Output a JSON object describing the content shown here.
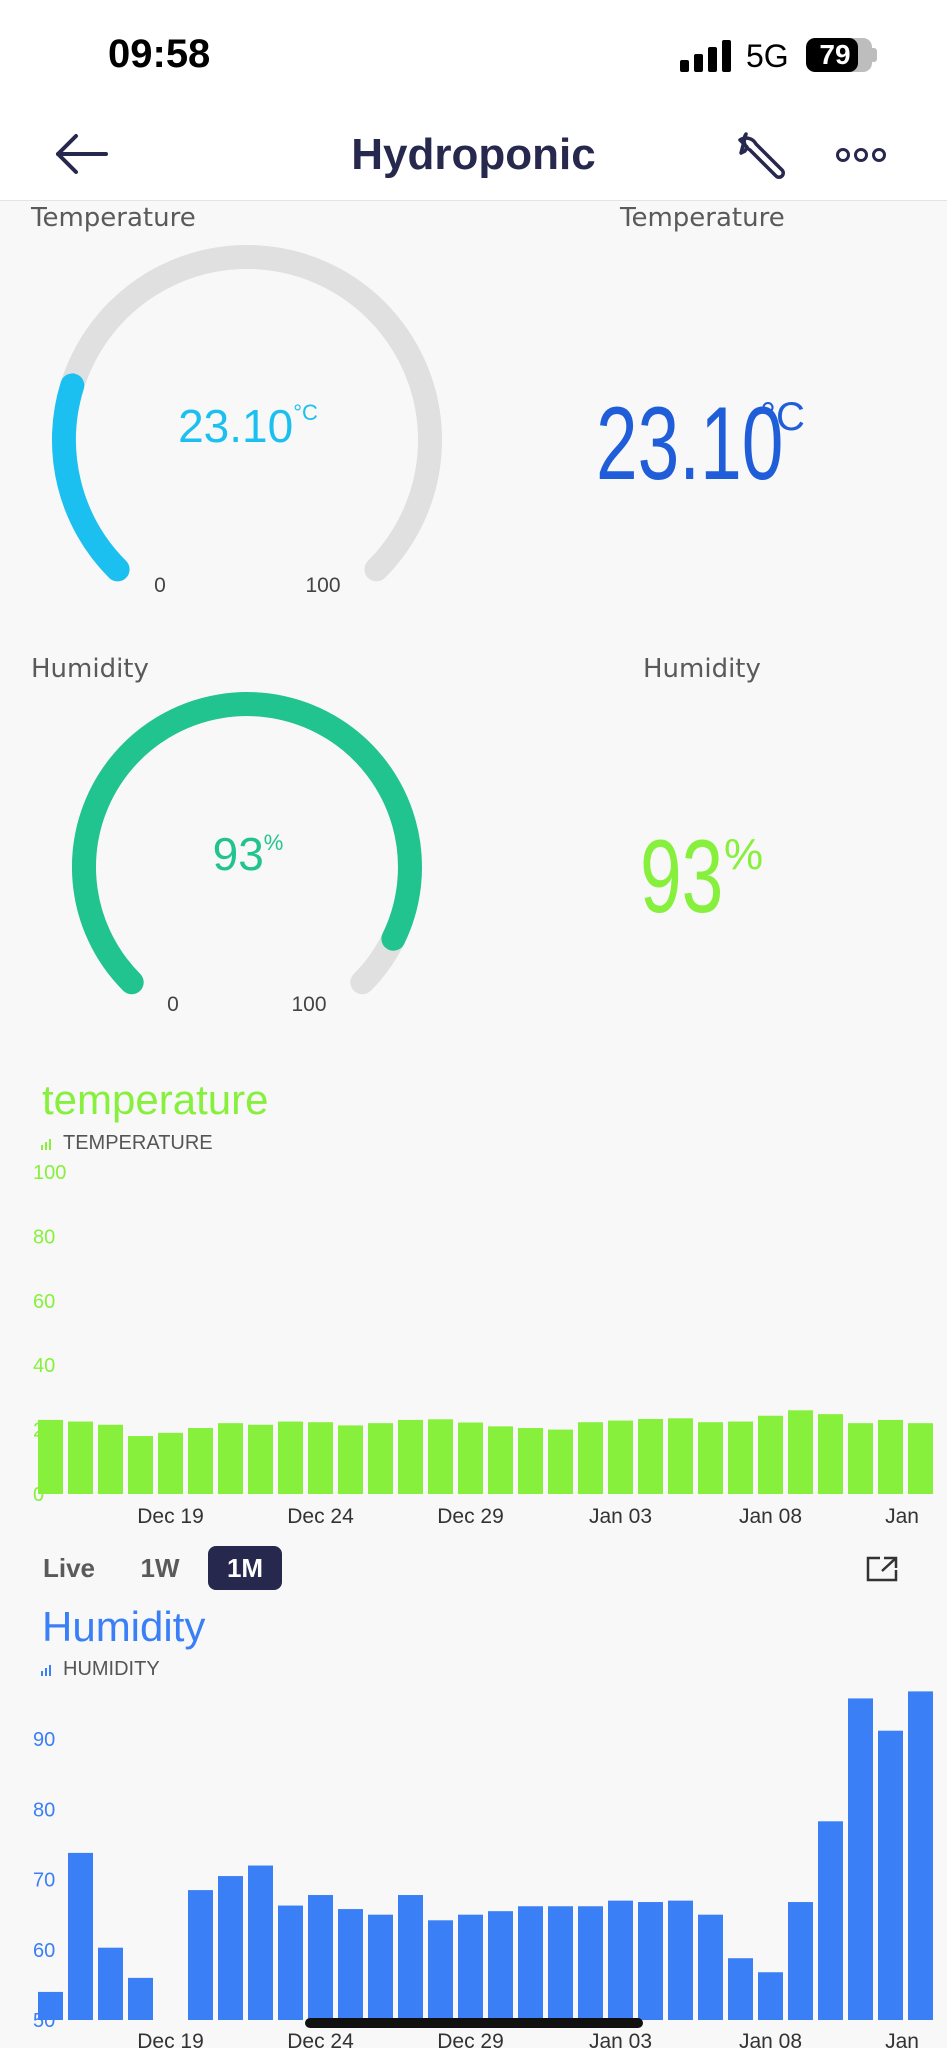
{
  "status_bar": {
    "time": "09:58",
    "network": "5G",
    "battery": "79",
    "battery_level": 0.79
  },
  "header": {
    "title": "Hydroponic",
    "back_icon": "arrow-left-icon",
    "settings_icon": "wrench-icon",
    "more_icon": "more-dots-icon"
  },
  "temperature_gauge": {
    "label": "Temperature",
    "value": "23.10",
    "unit": "°C",
    "min": "0",
    "max": "100",
    "level": 0.231,
    "color": "#1cc0f0"
  },
  "temperature_value": {
    "label": "Temperature",
    "value": "23.10",
    "unit": "°C",
    "color": "#1f5ed8"
  },
  "humidity_gauge": {
    "label": "Humidity",
    "value": "93",
    "unit": "%",
    "min": "0",
    "max": "100",
    "level": 0.93,
    "color": "#21c38e"
  },
  "humidity_value": {
    "label": "Humidity",
    "value": "93",
    "unit": "%",
    "color": "#86f03c"
  },
  "temperature_chart": {
    "title": "temperature",
    "subtitle": "TEMPERATURE",
    "color": "#86f03c"
  },
  "time_tabs": {
    "live": "Live",
    "week": "1W",
    "month": "1M",
    "active": "1M",
    "expand_icon": "expand-icon"
  },
  "humidity_chart": {
    "title": "Humidity",
    "subtitle": "HUMIDITY",
    "color": "#3a7ff5"
  },
  "chart_data": [
    {
      "type": "bar",
      "title": "temperature",
      "subtitle": "TEMPERATURE",
      "ylim": [
        0,
        100
      ],
      "yticks": [
        "100",
        "80",
        "60",
        "40",
        "20",
        "0"
      ],
      "ytick_values": [
        100,
        80,
        60,
        40,
        20,
        0
      ],
      "xtick_labels": [
        "Dec 19",
        "Dec 24",
        "Dec 29",
        "Jan 03",
        "Jan 08",
        "Jan"
      ],
      "xtick_index": [
        4,
        9,
        14,
        19,
        24,
        29
      ],
      "series": [
        {
          "values": [
            23,
            22.5,
            21.5,
            18,
            19,
            20.5,
            22,
            21.5,
            22.5,
            22.3,
            21.3,
            22,
            23,
            23.2,
            22.2,
            21,
            20.5,
            20,
            22.3,
            22.8,
            23.3,
            23.5,
            22.3,
            22.5,
            24.3,
            26,
            24.8,
            22,
            23,
            22
          ]
        }
      ],
      "grid": false
    },
    {
      "type": "bar",
      "title": "Humidity",
      "subtitle": "HUMIDITY",
      "ylim": [
        50,
        97
      ],
      "yticks": [
        "90",
        "80",
        "70",
        "60",
        "50"
      ],
      "ytick_values": [
        90,
        80,
        70,
        60,
        50
      ],
      "xtick_labels": [
        "Dec 19",
        "Dec 24",
        "Dec 29",
        "Jan 03",
        "Jan 08",
        "Jan"
      ],
      "xtick_index": [
        4,
        9,
        14,
        19,
        24,
        29
      ],
      "series": [
        {
          "values": [
            54,
            73.8,
            60.3,
            56,
            null,
            68.5,
            70.5,
            72,
            66.3,
            67.8,
            65.8,
            65,
            67.8,
            64.2,
            65,
            65.5,
            66.2,
            66.2,
            66.2,
            67,
            66.8,
            67,
            65,
            58.8,
            56.8,
            66.8,
            78.3,
            95.8,
            91.2,
            96.8
          ]
        }
      ],
      "grid": false
    }
  ]
}
